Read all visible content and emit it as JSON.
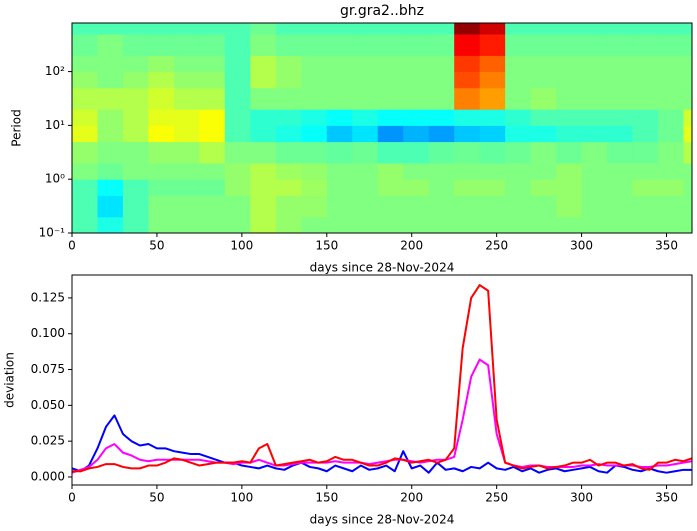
{
  "chart_data": [
    {
      "type": "heatmap",
      "title": "gr.gra2..bhz",
      "ylabel": "Period",
      "xlabel": "days since 28-Nov-2024",
      "yscale": "log",
      "colormap": "jet",
      "zlim": [
        0,
        1
      ],
      "xlim": [
        0,
        365
      ],
      "ylim": [
        0.1,
        800
      ],
      "xticks": [
        0,
        50,
        100,
        150,
        200,
        250,
        300,
        350
      ],
      "yticks": [
        {
          "value": 0.1,
          "label": "10⁻¹"
        },
        {
          "value": 1,
          "label": "10⁰"
        },
        {
          "value": 10,
          "label": "10¹"
        },
        {
          "value": 100,
          "label": "10²"
        }
      ],
      "x_edges": [
        0,
        15,
        30,
        45,
        60,
        75,
        90,
        105,
        120,
        135,
        150,
        165,
        180,
        195,
        210,
        225,
        240,
        255,
        270,
        285,
        300,
        315,
        330,
        345,
        360,
        365
      ],
      "y_edges": [
        0.1,
        0.2,
        0.5,
        1,
        2,
        5,
        10,
        20,
        50,
        100,
        200,
        500,
        800
      ],
      "z": [
        [
          0.45,
          0.4,
          0.45,
          0.5,
          0.5,
          0.5,
          0.5,
          0.55,
          0.52,
          0.5,
          0.5,
          0.5,
          0.5,
          0.5,
          0.5,
          0.5,
          0.5,
          0.5,
          0.5,
          0.5,
          0.5,
          0.5,
          0.5,
          0.5,
          0.5
        ],
        [
          0.45,
          0.35,
          0.45,
          0.5,
          0.5,
          0.5,
          0.5,
          0.55,
          0.52,
          0.52,
          0.5,
          0.5,
          0.5,
          0.5,
          0.5,
          0.5,
          0.5,
          0.5,
          0.5,
          0.52,
          0.5,
          0.5,
          0.5,
          0.5,
          0.5
        ],
        [
          0.45,
          0.38,
          0.45,
          0.48,
          0.48,
          0.48,
          0.52,
          0.55,
          0.55,
          0.53,
          0.5,
          0.5,
          0.52,
          0.52,
          0.5,
          0.52,
          0.52,
          0.5,
          0.52,
          0.52,
          0.5,
          0.5,
          0.52,
          0.52,
          0.5
        ],
        [
          0.5,
          0.48,
          0.5,
          0.5,
          0.5,
          0.5,
          0.52,
          0.55,
          0.53,
          0.52,
          0.5,
          0.5,
          0.52,
          0.5,
          0.5,
          0.5,
          0.5,
          0.5,
          0.5,
          0.52,
          0.5,
          0.5,
          0.5,
          0.5,
          0.5
        ],
        [
          0.52,
          0.5,
          0.5,
          0.52,
          0.52,
          0.55,
          0.5,
          0.5,
          0.48,
          0.48,
          0.47,
          0.48,
          0.45,
          0.45,
          0.47,
          0.48,
          0.47,
          0.48,
          0.5,
          0.48,
          0.5,
          0.48,
          0.48,
          0.5,
          0.55
        ],
        [
          0.6,
          0.52,
          0.55,
          0.62,
          0.6,
          0.62,
          0.45,
          0.42,
          0.4,
          0.38,
          0.32,
          0.35,
          0.27,
          0.3,
          0.28,
          0.32,
          0.33,
          0.4,
          0.4,
          0.42,
          0.42,
          0.42,
          0.45,
          0.48,
          0.6
        ],
        [
          0.58,
          0.52,
          0.55,
          0.6,
          0.6,
          0.62,
          0.45,
          0.42,
          0.42,
          0.4,
          0.38,
          0.4,
          0.38,
          0.38,
          0.38,
          0.4,
          0.4,
          0.42,
          0.45,
          0.45,
          0.45,
          0.45,
          0.45,
          0.48,
          0.58
        ],
        [
          0.55,
          0.55,
          0.55,
          0.58,
          0.55,
          0.55,
          0.45,
          0.5,
          0.5,
          0.5,
          0.5,
          0.5,
          0.5,
          0.5,
          0.5,
          0.75,
          0.72,
          0.5,
          0.52,
          0.5,
          0.5,
          0.5,
          0.5,
          0.5,
          0.5
        ],
        [
          0.52,
          0.5,
          0.52,
          0.55,
          0.52,
          0.52,
          0.45,
          0.55,
          0.52,
          0.5,
          0.5,
          0.5,
          0.5,
          0.5,
          0.5,
          0.8,
          0.75,
          0.5,
          0.5,
          0.5,
          0.5,
          0.5,
          0.5,
          0.5,
          0.5
        ],
        [
          0.5,
          0.5,
          0.5,
          0.52,
          0.5,
          0.5,
          0.45,
          0.55,
          0.52,
          0.5,
          0.5,
          0.5,
          0.5,
          0.5,
          0.5,
          0.82,
          0.78,
          0.5,
          0.5,
          0.5,
          0.5,
          0.5,
          0.5,
          0.5,
          0.5
        ],
        [
          0.48,
          0.5,
          0.48,
          0.48,
          0.48,
          0.48,
          0.45,
          0.5,
          0.48,
          0.48,
          0.48,
          0.48,
          0.48,
          0.48,
          0.48,
          0.88,
          0.85,
          0.48,
          0.48,
          0.48,
          0.48,
          0.48,
          0.48,
          0.48,
          0.48
        ],
        [
          0.45,
          0.45,
          0.45,
          0.45,
          0.45,
          0.45,
          0.45,
          0.48,
          0.45,
          0.45,
          0.45,
          0.45,
          0.45,
          0.45,
          0.45,
          0.98,
          0.92,
          0.45,
          0.45,
          0.45,
          0.45,
          0.45,
          0.45,
          0.45,
          0.45
        ]
      ]
    },
    {
      "type": "line",
      "ylabel": "deviation",
      "xlabel": "days since 28-Nov-2024",
      "xlim": [
        0,
        365
      ],
      "ylim": [
        -0.0056,
        0.141
      ],
      "xticks": [
        0,
        50,
        100,
        150,
        200,
        250,
        300,
        350
      ],
      "yticks": [
        {
          "value": 0,
          "label": "0.000"
        },
        {
          "value": 0.025,
          "label": "0.025"
        },
        {
          "value": 0.05,
          "label": "0.050"
        },
        {
          "value": 0.075,
          "label": "0.075"
        },
        {
          "value": 0.1,
          "label": "0.100"
        },
        {
          "value": 0.125,
          "label": "0.125"
        }
      ],
      "x": [
        0,
        5,
        10,
        15,
        20,
        25,
        30,
        35,
        40,
        45,
        50,
        55,
        60,
        65,
        70,
        75,
        80,
        85,
        90,
        95,
        100,
        105,
        110,
        115,
        120,
        125,
        130,
        135,
        140,
        145,
        150,
        155,
        160,
        165,
        170,
        175,
        180,
        185,
        190,
        195,
        200,
        205,
        210,
        215,
        220,
        225,
        230,
        235,
        240,
        245,
        250,
        255,
        260,
        265,
        270,
        275,
        280,
        285,
        290,
        295,
        300,
        305,
        310,
        315,
        320,
        325,
        330,
        335,
        340,
        345,
        350,
        355,
        360,
        365
      ],
      "series": [
        {
          "color": "#0000ff",
          "values": [
            0.006,
            0.004,
            0.008,
            0.02,
            0.035,
            0.043,
            0.03,
            0.025,
            0.022,
            0.023,
            0.02,
            0.02,
            0.018,
            0.017,
            0.016,
            0.016,
            0.014,
            0.012,
            0.01,
            0.01,
            0.008,
            0.007,
            0.006,
            0.008,
            0.006,
            0.005,
            0.008,
            0.01,
            0.007,
            0.006,
            0.004,
            0.008,
            0.006,
            0.004,
            0.008,
            0.005,
            0.006,
            0.008,
            0.004,
            0.018,
            0.006,
            0.008,
            0.003,
            0.01,
            0.005,
            0.006,
            0.004,
            0.007,
            0.006,
            0.01,
            0.006,
            0.005,
            0.007,
            0.004,
            0.006,
            0.003,
            0.005,
            0.006,
            0.004,
            0.005,
            0.006,
            0.007,
            0.004,
            0.003,
            0.008,
            0.007,
            0.005,
            0.004,
            0.006,
            0.004,
            0.003,
            0.004,
            0.005,
            0.005
          ]
        },
        {
          "color": "#ff00ff",
          "values": [
            0.003,
            0.005,
            0.007,
            0.012,
            0.02,
            0.023,
            0.017,
            0.015,
            0.012,
            0.011,
            0.012,
            0.012,
            0.012,
            0.012,
            0.012,
            0.012,
            0.011,
            0.01,
            0.01,
            0.009,
            0.01,
            0.01,
            0.012,
            0.01,
            0.008,
            0.008,
            0.009,
            0.01,
            0.01,
            0.01,
            0.01,
            0.011,
            0.01,
            0.01,
            0.01,
            0.009,
            0.01,
            0.011,
            0.012,
            0.012,
            0.011,
            0.01,
            0.011,
            0.012,
            0.012,
            0.014,
            0.04,
            0.07,
            0.082,
            0.078,
            0.03,
            0.01,
            0.008,
            0.007,
            0.008,
            0.008,
            0.007,
            0.007,
            0.007,
            0.007,
            0.008,
            0.008,
            0.009,
            0.008,
            0.008,
            0.008,
            0.008,
            0.007,
            0.007,
            0.008,
            0.008,
            0.009,
            0.01,
            0.011
          ]
        },
        {
          "color": "#ff0000",
          "values": [
            0.004,
            0.004,
            0.006,
            0.007,
            0.009,
            0.009,
            0.007,
            0.006,
            0.006,
            0.008,
            0.008,
            0.01,
            0.013,
            0.012,
            0.01,
            0.008,
            0.009,
            0.01,
            0.01,
            0.01,
            0.011,
            0.01,
            0.02,
            0.023,
            0.008,
            0.009,
            0.01,
            0.011,
            0.012,
            0.01,
            0.011,
            0.014,
            0.012,
            0.012,
            0.01,
            0.008,
            0.008,
            0.01,
            0.013,
            0.012,
            0.01,
            0.011,
            0.012,
            0.01,
            0.012,
            0.02,
            0.09,
            0.125,
            0.134,
            0.13,
            0.04,
            0.01,
            0.008,
            0.006,
            0.007,
            0.008,
            0.006,
            0.007,
            0.008,
            0.01,
            0.01,
            0.012,
            0.008,
            0.01,
            0.01,
            0.008,
            0.009,
            0.006,
            0.005,
            0.01,
            0.01,
            0.012,
            0.011,
            0.013
          ]
        }
      ]
    }
  ]
}
